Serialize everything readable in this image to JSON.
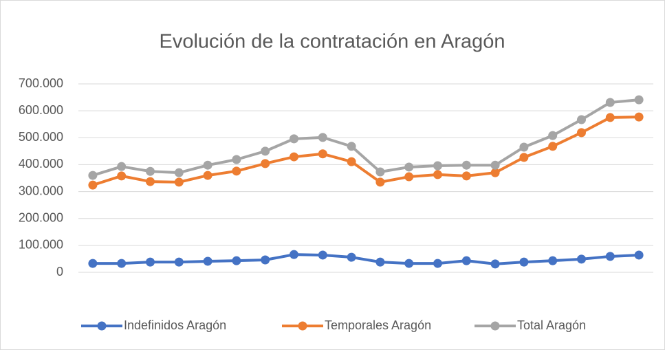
{
  "chart_data": {
    "type": "line",
    "title": "Evolución de la contratación en Aragón",
    "categories": [
      null,
      null,
      null,
      null,
      null,
      null,
      null,
      null,
      null,
      null,
      null,
      null,
      null,
      null,
      null,
      null,
      null,
      null,
      null,
      null
    ],
    "series": [
      {
        "name": "Indefinidos Aragón",
        "color": "#4472c4",
        "values": [
          33000,
          33000,
          38000,
          38000,
          41000,
          43000,
          46000,
          66000,
          64000,
          56000,
          38000,
          33000,
          33000,
          43000,
          31000,
          38000,
          43000,
          49000,
          59000,
          64000
        ]
      },
      {
        "name": "Temporales Aragón",
        "color": "#ed7d31",
        "values": [
          324000,
          358000,
          337000,
          335000,
          360000,
          376000,
          404000,
          429000,
          440000,
          411000,
          335000,
          355000,
          363000,
          358000,
          370000,
          427000,
          468000,
          519000,
          575000,
          577000
        ]
      },
      {
        "name": "Total Aragón",
        "color": "#a5a5a5",
        "values": [
          360000,
          393000,
          375000,
          370000,
          398000,
          419000,
          450000,
          496000,
          501000,
          468000,
          373000,
          391000,
          396000,
          398000,
          398000,
          465000,
          508000,
          567000,
          631000,
          641000
        ]
      }
    ],
    "ylim": [
      0,
      700000
    ],
    "yticks": [
      0,
      {
        "value": 100000,
        "label": "100.000"
      },
      {
        "value": 200000,
        "label": "200.000"
      },
      {
        "value": 300000,
        "label": "300.000"
      },
      {
        "value": 400000,
        "label": "400.000"
      },
      {
        "value": 500000,
        "label": "500.000"
      },
      {
        "value": 600000,
        "label": "600.000"
      },
      {
        "value": 700000,
        "label": "700.000"
      }
    ],
    "grid": true,
    "legend": "bottom"
  }
}
